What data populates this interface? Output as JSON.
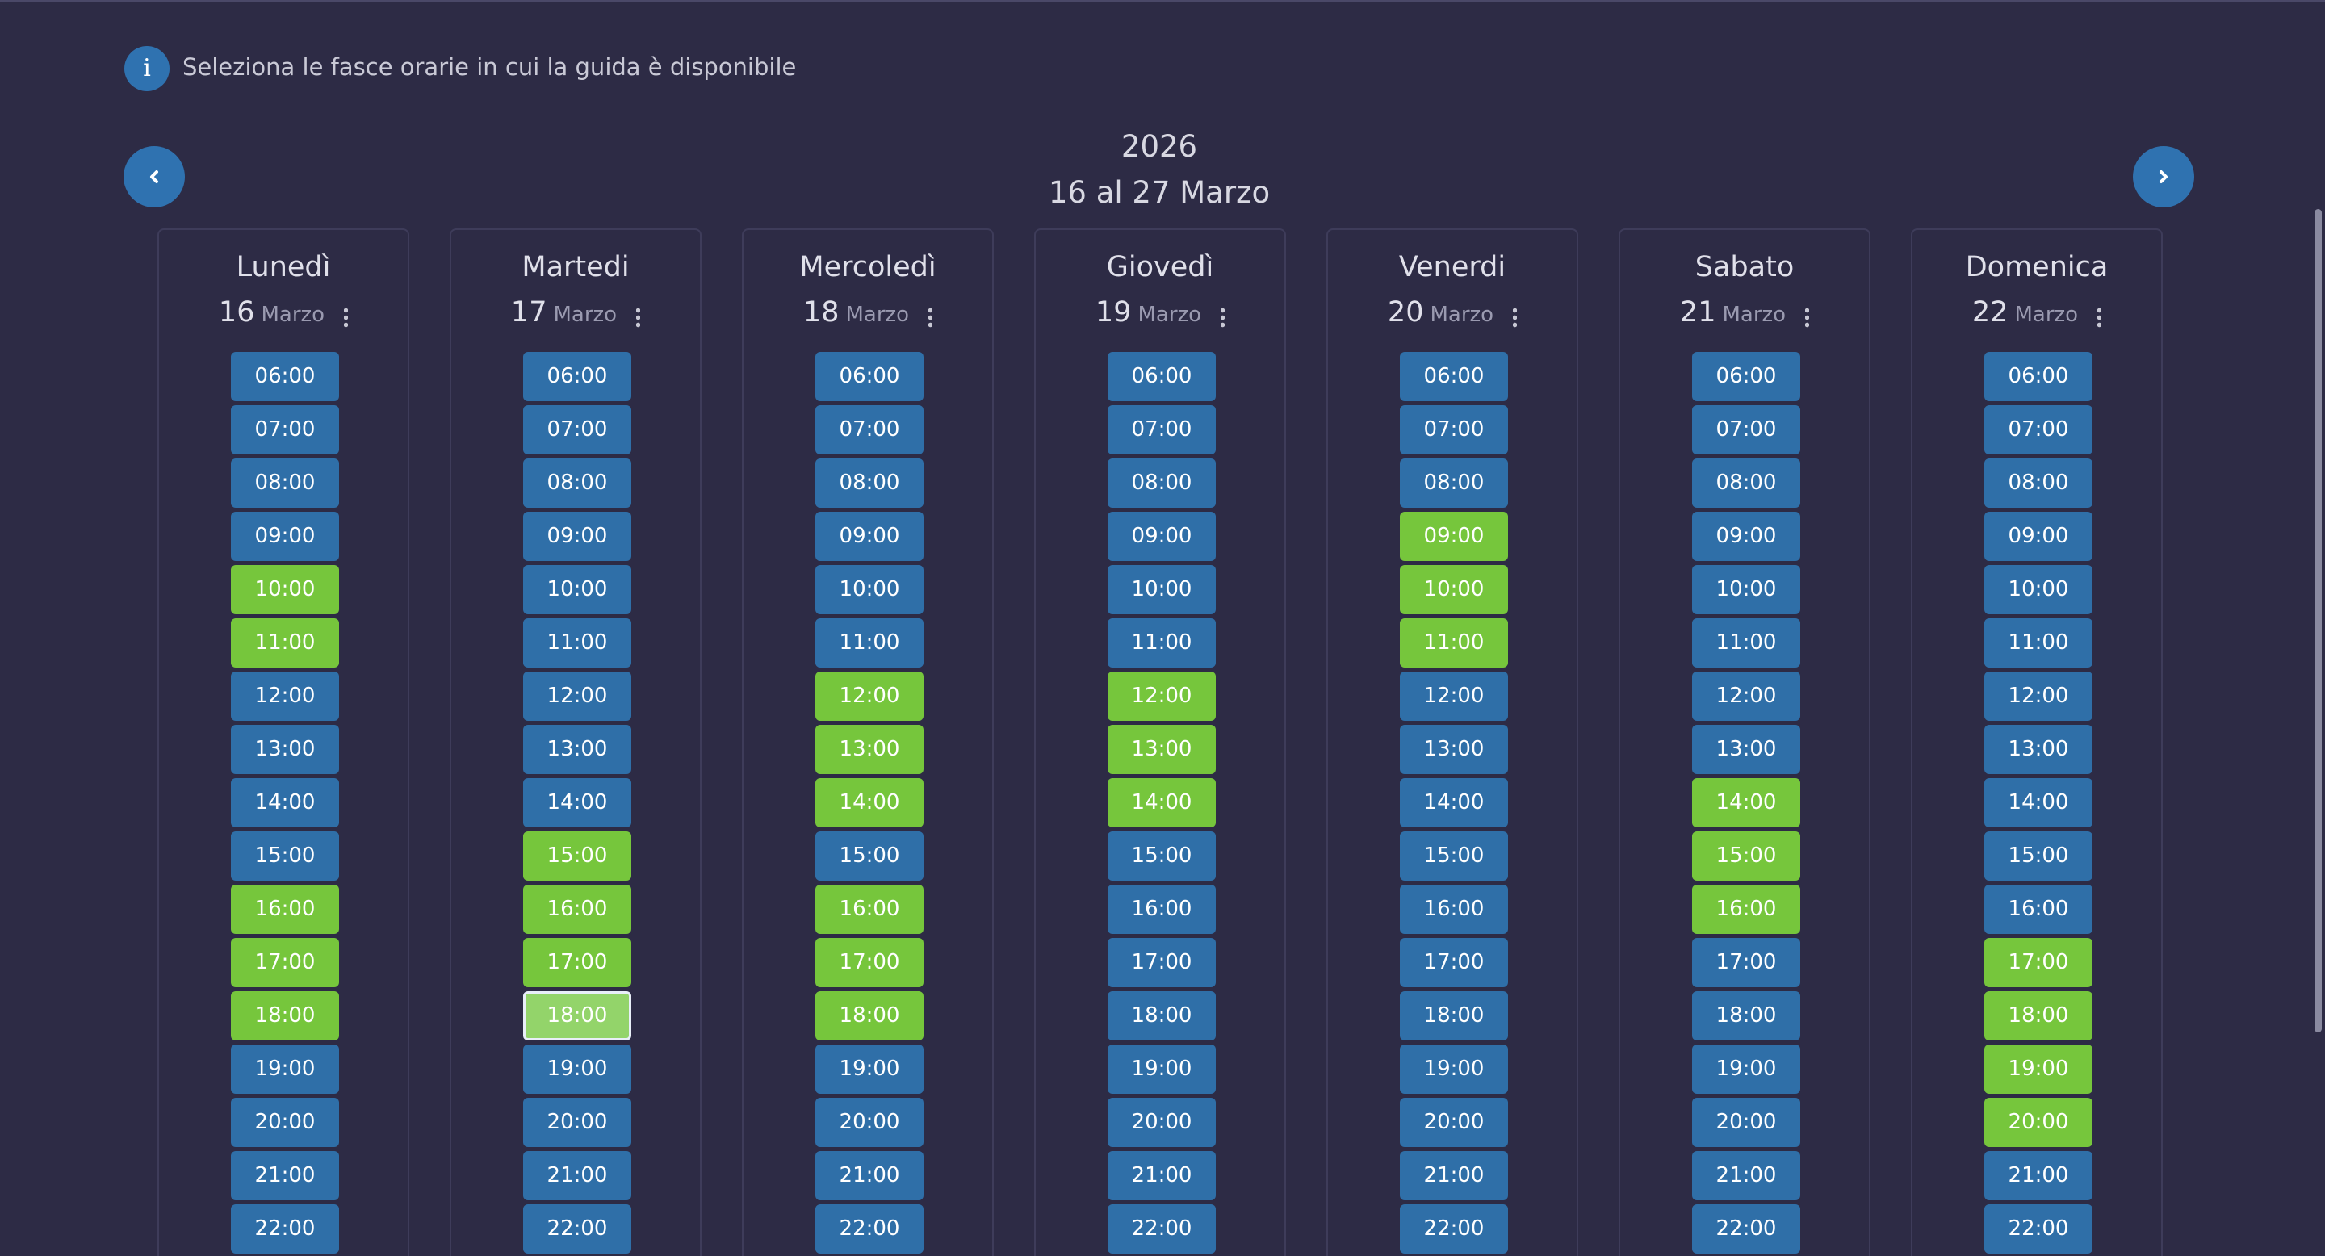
{
  "header": {
    "info_icon": "i",
    "info": "Seleziona le fasce orarie in cui la guida è disponibile"
  },
  "period": {
    "year": "2026",
    "range": "16 al 27 Marzo"
  },
  "days": [
    {
      "name": "Lunedì",
      "day": "16",
      "month": "Marzo",
      "slots": [
        {
          "time": "06:00",
          "selected": false
        },
        {
          "time": "07:00",
          "selected": false
        },
        {
          "time": "08:00",
          "selected": false
        },
        {
          "time": "09:00",
          "selected": false
        },
        {
          "time": "10:00",
          "selected": true
        },
        {
          "time": "11:00",
          "selected": true
        },
        {
          "time": "12:00",
          "selected": false
        },
        {
          "time": "13:00",
          "selected": false
        },
        {
          "time": "14:00",
          "selected": false
        },
        {
          "time": "15:00",
          "selected": false
        },
        {
          "time": "16:00",
          "selected": true
        },
        {
          "time": "17:00",
          "selected": true
        },
        {
          "time": "18:00",
          "selected": true
        },
        {
          "time": "19:00",
          "selected": false
        },
        {
          "time": "20:00",
          "selected": false
        },
        {
          "time": "21:00",
          "selected": false
        },
        {
          "time": "22:00",
          "selected": false
        }
      ]
    },
    {
      "name": "Martedi",
      "day": "17",
      "month": "Marzo",
      "slots": [
        {
          "time": "06:00",
          "selected": false
        },
        {
          "time": "07:00",
          "selected": false
        },
        {
          "time": "08:00",
          "selected": false
        },
        {
          "time": "09:00",
          "selected": false
        },
        {
          "time": "10:00",
          "selected": false
        },
        {
          "time": "11:00",
          "selected": false
        },
        {
          "time": "12:00",
          "selected": false
        },
        {
          "time": "13:00",
          "selected": false
        },
        {
          "time": "14:00",
          "selected": false
        },
        {
          "time": "15:00",
          "selected": true
        },
        {
          "time": "16:00",
          "selected": true
        },
        {
          "time": "17:00",
          "selected": true
        },
        {
          "time": "18:00",
          "selected": true,
          "focused": true
        },
        {
          "time": "19:00",
          "selected": false
        },
        {
          "time": "20:00",
          "selected": false
        },
        {
          "time": "21:00",
          "selected": false
        },
        {
          "time": "22:00",
          "selected": false
        }
      ]
    },
    {
      "name": "Mercoledì",
      "day": "18",
      "month": "Marzo",
      "slots": [
        {
          "time": "06:00",
          "selected": false
        },
        {
          "time": "07:00",
          "selected": false
        },
        {
          "time": "08:00",
          "selected": false
        },
        {
          "time": "09:00",
          "selected": false
        },
        {
          "time": "10:00",
          "selected": false
        },
        {
          "time": "11:00",
          "selected": false
        },
        {
          "time": "12:00",
          "selected": true
        },
        {
          "time": "13:00",
          "selected": true
        },
        {
          "time": "14:00",
          "selected": true
        },
        {
          "time": "15:00",
          "selected": false
        },
        {
          "time": "16:00",
          "selected": true
        },
        {
          "time": "17:00",
          "selected": true
        },
        {
          "time": "18:00",
          "selected": true
        },
        {
          "time": "19:00",
          "selected": false
        },
        {
          "time": "20:00",
          "selected": false
        },
        {
          "time": "21:00",
          "selected": false
        },
        {
          "time": "22:00",
          "selected": false
        }
      ]
    },
    {
      "name": "Giovedì",
      "day": "19",
      "month": "Marzo",
      "slots": [
        {
          "time": "06:00",
          "selected": false
        },
        {
          "time": "07:00",
          "selected": false
        },
        {
          "time": "08:00",
          "selected": false
        },
        {
          "time": "09:00",
          "selected": false
        },
        {
          "time": "10:00",
          "selected": false
        },
        {
          "time": "11:00",
          "selected": false
        },
        {
          "time": "12:00",
          "selected": true
        },
        {
          "time": "13:00",
          "selected": true
        },
        {
          "time": "14:00",
          "selected": true
        },
        {
          "time": "15:00",
          "selected": false
        },
        {
          "time": "16:00",
          "selected": false
        },
        {
          "time": "17:00",
          "selected": false
        },
        {
          "time": "18:00",
          "selected": false
        },
        {
          "time": "19:00",
          "selected": false
        },
        {
          "time": "20:00",
          "selected": false
        },
        {
          "time": "21:00",
          "selected": false
        },
        {
          "time": "22:00",
          "selected": false
        }
      ]
    },
    {
      "name": "Venerdi",
      "day": "20",
      "month": "Marzo",
      "slots": [
        {
          "time": "06:00",
          "selected": false
        },
        {
          "time": "07:00",
          "selected": false
        },
        {
          "time": "08:00",
          "selected": false
        },
        {
          "time": "09:00",
          "selected": true
        },
        {
          "time": "10:00",
          "selected": true
        },
        {
          "time": "11:00",
          "selected": true
        },
        {
          "time": "12:00",
          "selected": false
        },
        {
          "time": "13:00",
          "selected": false
        },
        {
          "time": "14:00",
          "selected": false
        },
        {
          "time": "15:00",
          "selected": false
        },
        {
          "time": "16:00",
          "selected": false
        },
        {
          "time": "17:00",
          "selected": false
        },
        {
          "time": "18:00",
          "selected": false
        },
        {
          "time": "19:00",
          "selected": false
        },
        {
          "time": "20:00",
          "selected": false
        },
        {
          "time": "21:00",
          "selected": false
        },
        {
          "time": "22:00",
          "selected": false
        }
      ]
    },
    {
      "name": "Sabato",
      "day": "21",
      "month": "Marzo",
      "slots": [
        {
          "time": "06:00",
          "selected": false
        },
        {
          "time": "07:00",
          "selected": false
        },
        {
          "time": "08:00",
          "selected": false
        },
        {
          "time": "09:00",
          "selected": false
        },
        {
          "time": "10:00",
          "selected": false
        },
        {
          "time": "11:00",
          "selected": false
        },
        {
          "time": "12:00",
          "selected": false
        },
        {
          "time": "13:00",
          "selected": false
        },
        {
          "time": "14:00",
          "selected": true
        },
        {
          "time": "15:00",
          "selected": true
        },
        {
          "time": "16:00",
          "selected": true
        },
        {
          "time": "17:00",
          "selected": false
        },
        {
          "time": "18:00",
          "selected": false
        },
        {
          "time": "19:00",
          "selected": false
        },
        {
          "time": "20:00",
          "selected": false
        },
        {
          "time": "21:00",
          "selected": false
        },
        {
          "time": "22:00",
          "selected": false
        }
      ]
    },
    {
      "name": "Domenica",
      "day": "22",
      "month": "Marzo",
      "slots": [
        {
          "time": "06:00",
          "selected": false
        },
        {
          "time": "07:00",
          "selected": false
        },
        {
          "time": "08:00",
          "selected": false
        },
        {
          "time": "09:00",
          "selected": false
        },
        {
          "time": "10:00",
          "selected": false
        },
        {
          "time": "11:00",
          "selected": false
        },
        {
          "time": "12:00",
          "selected": false
        },
        {
          "time": "13:00",
          "selected": false
        },
        {
          "time": "14:00",
          "selected": false
        },
        {
          "time": "15:00",
          "selected": false
        },
        {
          "time": "16:00",
          "selected": false
        },
        {
          "time": "17:00",
          "selected": true
        },
        {
          "time": "18:00",
          "selected": true
        },
        {
          "time": "19:00",
          "selected": true
        },
        {
          "time": "20:00",
          "selected": true
        },
        {
          "time": "21:00",
          "selected": false
        },
        {
          "time": "22:00",
          "selected": false
        }
      ]
    }
  ]
}
